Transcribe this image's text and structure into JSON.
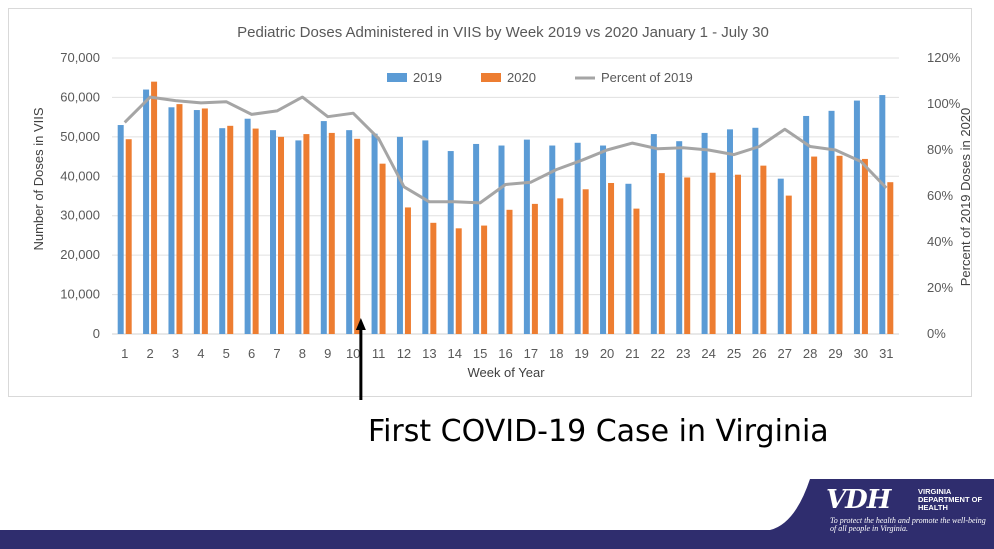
{
  "chart_data": {
    "type": "bar",
    "title": "Pediatric Doses Administered in VIIS by Week 2019 vs 2020 January 1 - July 30",
    "xlabel": "Week of Year",
    "ylabel": "Number of Doses in VIIS",
    "y2label": "Percent of 2019 Doses in 2020",
    "ylim": [
      0,
      70000
    ],
    "y2lim": [
      0,
      1.2
    ],
    "yticks": [
      "0",
      "10,000",
      "20,000",
      "30,000",
      "40,000",
      "50,000",
      "60,000",
      "70,000"
    ],
    "y2ticks": [
      "0%",
      "20%",
      "40%",
      "60%",
      "80%",
      "100%",
      "120%"
    ],
    "legend_position": "top",
    "categories": [
      "1",
      "2",
      "3",
      "4",
      "5",
      "6",
      "7",
      "8",
      "9",
      "10",
      "11",
      "12",
      "13",
      "14",
      "15",
      "16",
      "17",
      "18",
      "19",
      "20",
      "21",
      "22",
      "23",
      "24",
      "25",
      "26",
      "27",
      "28",
      "29",
      "30",
      "31"
    ],
    "series": [
      {
        "name": "2019",
        "kind": "bar",
        "color": "#5b9bd5",
        "values": [
          53000,
          62000,
          57500,
          56800,
          52200,
          54600,
          51700,
          49100,
          54000,
          51700,
          50800,
          50000,
          49100,
          46400,
          48200,
          47800,
          49300,
          47800,
          48500,
          47800,
          38100,
          50700,
          48900,
          51000,
          51900,
          52300,
          39400,
          55300,
          56600,
          59200,
          60600
        ]
      },
      {
        "name": "2020",
        "kind": "bar",
        "color": "#ed7d31",
        "values": [
          49400,
          64000,
          58300,
          57200,
          52800,
          52100,
          50000,
          50700,
          51000,
          49500,
          43200,
          32100,
          28200,
          26800,
          27500,
          31500,
          33000,
          34400,
          36700,
          38300,
          31800,
          40800,
          39700,
          40900,
          40400,
          42700,
          35100,
          45000,
          45200,
          44400,
          38500
        ]
      },
      {
        "name": "Percent of 2019",
        "kind": "line",
        "color": "#a5a5a5",
        "axis": "secondary",
        "values": [
          0.92,
          1.03,
          1.015,
          1.005,
          1.01,
          0.955,
          0.97,
          1.03,
          0.945,
          0.96,
          0.85,
          0.64,
          0.575,
          0.575,
          0.57,
          0.65,
          0.66,
          0.715,
          0.755,
          0.8,
          0.83,
          0.805,
          0.81,
          0.8,
          0.78,
          0.815,
          0.89,
          0.815,
          0.8,
          0.75,
          0.635
        ]
      }
    ]
  },
  "annotation": {
    "text": "First COVID-19 Case in Virginia",
    "week": 11
  },
  "logo": {
    "mark": "VDH",
    "org": "VIRGINIA DEPARTMENT OF HEALTH",
    "tagline": "To protect the health and promote the well-being of all people in Virginia."
  }
}
